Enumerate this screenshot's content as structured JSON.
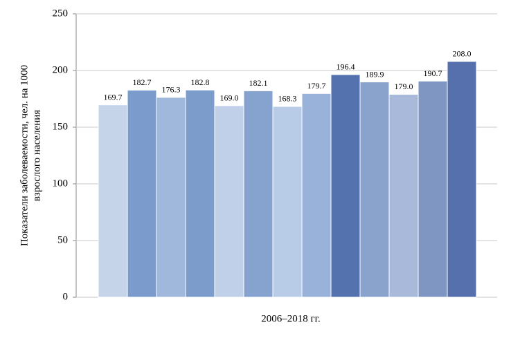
{
  "chart_data": {
    "type": "bar",
    "xlabel": "2006–2018 гг.",
    "ylabel": [
      "Показатели заболеваемости, чел. на 1000",
      "взрослого населения"
    ],
    "categories": [
      null,
      null,
      null,
      null,
      null,
      null,
      null,
      null,
      null,
      null,
      null,
      null,
      null
    ],
    "values": [
      169.7,
      182.7,
      176.3,
      182.8,
      169.0,
      182.1,
      168.3,
      179.7,
      196.4,
      189.9,
      179.0,
      190.7,
      208.0
    ],
    "value_labels": [
      "169.7",
      "182.7",
      "176.3",
      "182.8",
      "169.0",
      "182.1",
      "168.3",
      "179.7",
      "196.4",
      "189.9",
      "179.0",
      "190.7",
      "208.0"
    ],
    "colors": [
      "#c6d4ea",
      "#7a9bcb",
      "#9fb8dc",
      "#7c9ccb",
      "#c0d0e8",
      "#86a3cf",
      "#b8cbe7",
      "#98b2d9",
      "#5472ae",
      "#8aa3cd",
      "#a8b9d9",
      "#7e96c1",
      "#5670ad"
    ],
    "ylim": [
      0,
      250
    ],
    "yticks": [
      0,
      50,
      100,
      150,
      200,
      250
    ],
    "grid": true
  }
}
